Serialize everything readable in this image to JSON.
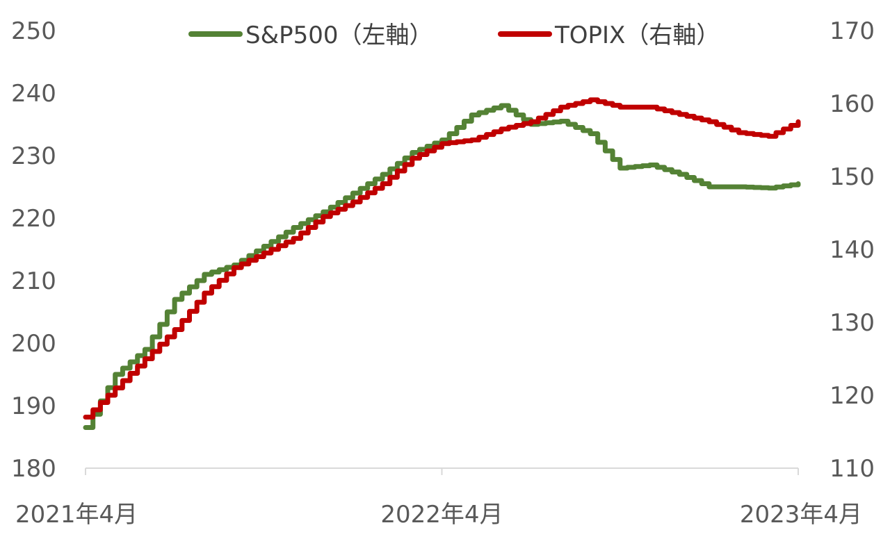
{
  "colors": {
    "sp500": "#548235",
    "topix": "#c00000",
    "axis": "#d9d9d9",
    "text": "#595959"
  },
  "legend": {
    "placement": "top-center"
  },
  "chart_data": {
    "type": "line",
    "grid": false,
    "x": [
      "2021-04",
      "2021-05",
      "2021-06",
      "2021-07",
      "2021-08",
      "2021-09",
      "2021-10",
      "2021-11",
      "2021-12",
      "2022-01",
      "2022-02",
      "2022-03",
      "2022-04",
      "2022-05",
      "2022-06",
      "2022-07",
      "2022-08",
      "2022-09",
      "2022-10",
      "2022-11",
      "2022-12",
      "2023-01",
      "2023-02",
      "2023-03",
      "2023-04"
    ],
    "x_ticks": [
      "2021年4月",
      "2022年4月",
      "2023年4月"
    ],
    "x_ticks_at": [
      "2021-04",
      "2022-04",
      "2023-04"
    ],
    "y_left": {
      "ticks": [
        "180",
        "190",
        "200",
        "210",
        "220",
        "230",
        "240",
        "250"
      ],
      "range": [
        180,
        250
      ]
    },
    "y_right": {
      "ticks": [
        "110",
        "120",
        "130",
        "140",
        "150",
        "160",
        "170"
      ],
      "range": [
        110,
        170
      ]
    },
    "series": [
      {
        "name": "S&P500（左軸）",
        "axis": "left",
        "values": [
          186.5,
          195.0,
          199.0,
          207.0,
          211.0,
          212.5,
          215.5,
          218.5,
          221.0,
          224.0,
          227.0,
          230.5,
          232.5,
          236.5,
          238.0,
          235.0,
          235.5,
          233.5,
          228.0,
          228.5,
          227.0,
          225.0,
          225.0,
          224.8,
          225.5
        ]
      },
      {
        "name": "TOPIX（右軸）",
        "axis": "right",
        "values": [
          117.0,
          121.0,
          125.0,
          129.0,
          134.0,
          137.5,
          139.5,
          141.5,
          144.5,
          146.5,
          149.0,
          152.5,
          154.5,
          155.0,
          156.5,
          157.5,
          159.5,
          160.5,
          159.5,
          159.5,
          158.5,
          157.5,
          156.0,
          155.5,
          157.5
        ]
      }
    ]
  }
}
